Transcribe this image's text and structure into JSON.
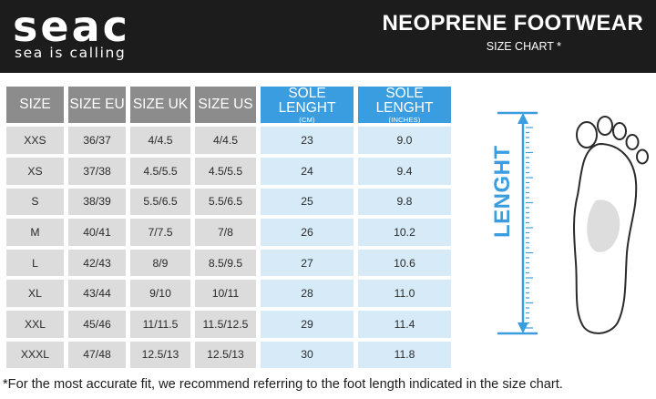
{
  "brand": {
    "logo_text": "seac",
    "tagline": "sea is calling"
  },
  "header": {
    "title": "NEOPRENE FOOTWEAR",
    "subtitle": "SIZE CHART *"
  },
  "table": {
    "headers": [
      {
        "label": "SIZE",
        "unit": ""
      },
      {
        "label": "SIZE EU",
        "unit": ""
      },
      {
        "label": "SIZE UK",
        "unit": ""
      },
      {
        "label": "SIZE US",
        "unit": ""
      },
      {
        "label": "SOLE LENGHT",
        "unit": "(CM)"
      },
      {
        "label": "SOLE LENGHT",
        "unit": "(INCHES)"
      }
    ],
    "rows": [
      [
        "XXS",
        "36/37",
        "4/4.5",
        "4/4.5",
        "23",
        "9.0"
      ],
      [
        "XS",
        "37/38",
        "4.5/5.5",
        "4.5/5.5",
        "24",
        "9.4"
      ],
      [
        "S",
        "38/39",
        "5.5/6.5",
        "5.5/6.5",
        "25",
        "9.8"
      ],
      [
        "M",
        "40/41",
        "7/7.5",
        "7/8",
        "26",
        "10.2"
      ],
      [
        "L",
        "42/43",
        "8/9",
        "8.5/9.5",
        "27",
        "10.6"
      ],
      [
        "XL",
        "43/44",
        "9/10",
        "10/11",
        "28",
        "11.0"
      ],
      [
        "XXL",
        "45/46",
        "11/11.5",
        "11.5/12.5",
        "29",
        "11.4"
      ],
      [
        "XXXL",
        "47/48",
        "12.5/13",
        "12.5/13",
        "30",
        "11.8"
      ]
    ]
  },
  "diagram": {
    "measure_label": "LENGHT"
  },
  "note": "*For the most accurate fit, we recommend referring to the foot length indicated in the size chart.",
  "colors": {
    "header_bg": "#1c1c1c",
    "accent_blue": "#3a9de0",
    "header_grey": "#8c8c8c",
    "cell_grey": "#dcdcdc",
    "cell_blue": "#d6eaf8"
  },
  "icons": {
    "foot": "foot-sole-icon",
    "measure": "length-arrow-icon"
  }
}
